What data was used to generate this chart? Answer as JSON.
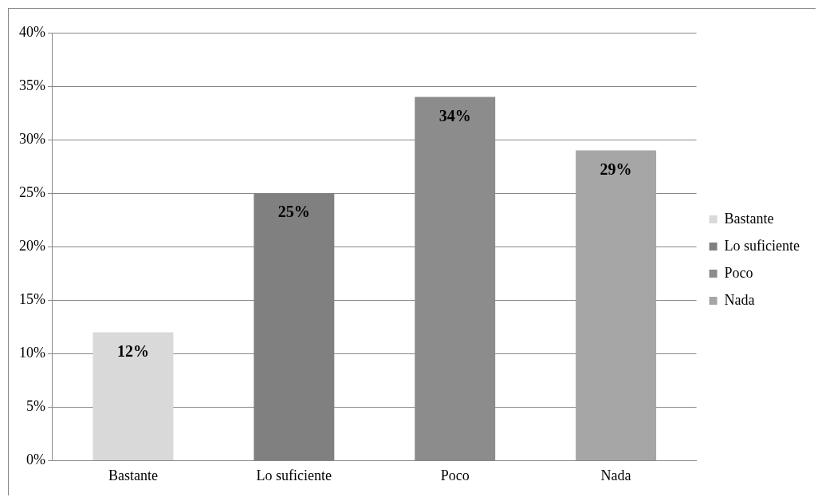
{
  "chart_data": {
    "type": "bar",
    "categories": [
      "Bastante",
      "Lo suficiente",
      "Poco",
      "Nada"
    ],
    "series": [
      {
        "name": "Bastante",
        "color": "#d9d9d9",
        "values": [
          12,
          null,
          null,
          null
        ],
        "value_labels": [
          "12%",
          null,
          null,
          null
        ]
      },
      {
        "name": "Lo suficiente",
        "color": "#808080",
        "values": [
          null,
          25,
          null,
          null
        ],
        "value_labels": [
          null,
          "25%",
          null,
          null
        ]
      },
      {
        "name": "Poco",
        "color": "#8c8c8c",
        "values": [
          null,
          null,
          34,
          null
        ],
        "value_labels": [
          null,
          null,
          "34%",
          null
        ]
      },
      {
        "name": "Nada",
        "color": "#a6a6a6",
        "values": [
          null,
          null,
          null,
          29
        ],
        "value_labels": [
          null,
          null,
          null,
          "29%"
        ]
      }
    ],
    "ylim": [
      0,
      40
    ],
    "yticks": [
      {
        "value": 0,
        "label": "0%"
      },
      {
        "value": 5,
        "label": "5%"
      },
      {
        "value": 10,
        "label": "10%"
      },
      {
        "value": 15,
        "label": "15%"
      },
      {
        "value": 20,
        "label": "20%"
      },
      {
        "value": 25,
        "label": "25%"
      },
      {
        "value": 30,
        "label": "30%"
      },
      {
        "value": 35,
        "label": "35%"
      },
      {
        "value": 40,
        "label": "40%"
      }
    ],
    "grid": "y",
    "legend": "right"
  }
}
